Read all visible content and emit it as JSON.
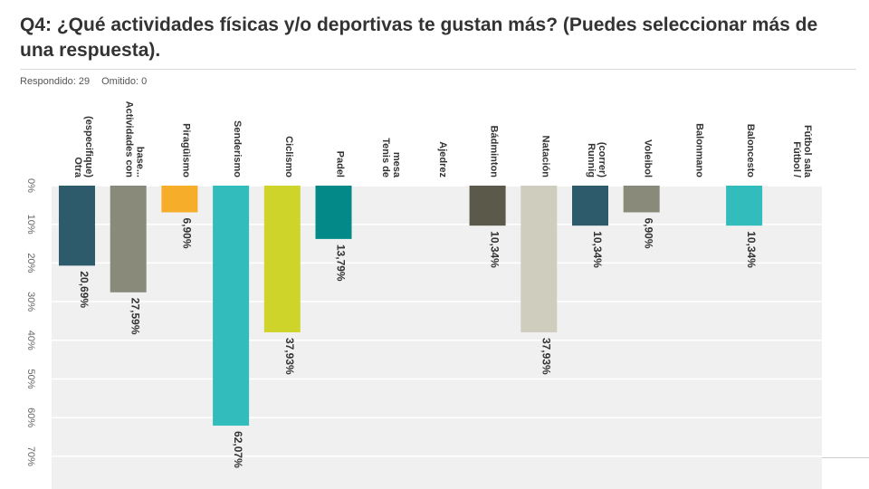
{
  "header": {
    "title": "Q4: ¿Qué actividades físicas y/o deportivas te gustan más? (Puedes seleccionar más de una respuesta).",
    "answered_label": "Respondido: 29",
    "skipped_label": "Omitido: 0"
  },
  "chart_data": {
    "type": "bar",
    "orientation": "vertical-downward",
    "categories": [
      "Otra (especifique)",
      "Actividades con base...",
      "Piragüismo",
      "Senderismo",
      "Ciclismo",
      "Padel",
      "Tenis de mesa",
      "Ajedrez",
      "Bádminton",
      "Natación",
      "Runnig (correr)",
      "Voleibol",
      "Balonmano",
      "Baloncesto",
      "Fútbol / Fútbol sala"
    ],
    "values": [
      20.69,
      27.59,
      6.9,
      62.07,
      37.93,
      13.79,
      0,
      0,
      10.34,
      37.93,
      10.34,
      6.9,
      0,
      10.34,
      0
    ],
    "value_labels": [
      "20,69%",
      "27,59%",
      "6,90%",
      "62,07%",
      "37,93%",
      "13,79%",
      "",
      "",
      "10,34%",
      "37,93%",
      "10,34%",
      "6,90%",
      "",
      "10,34%",
      ""
    ],
    "colors": [
      "#2e5b6b",
      "#8a8a7a",
      "#f5ad2a",
      "#33bcbc",
      "#cfd42a",
      "#038a88",
      "#999999",
      "#999999",
      "#5b5a4a",
      "#cfcdbe",
      "#2e5b6b",
      "#8a8a7a",
      "#999999",
      "#33bcbc",
      "#999999"
    ],
    "y_ticks": [
      "0%",
      "10%",
      "20%",
      "30%",
      "40%",
      "50%",
      "60%",
      "70%"
    ],
    "ylim": [
      0,
      80
    ],
    "grid": true
  }
}
